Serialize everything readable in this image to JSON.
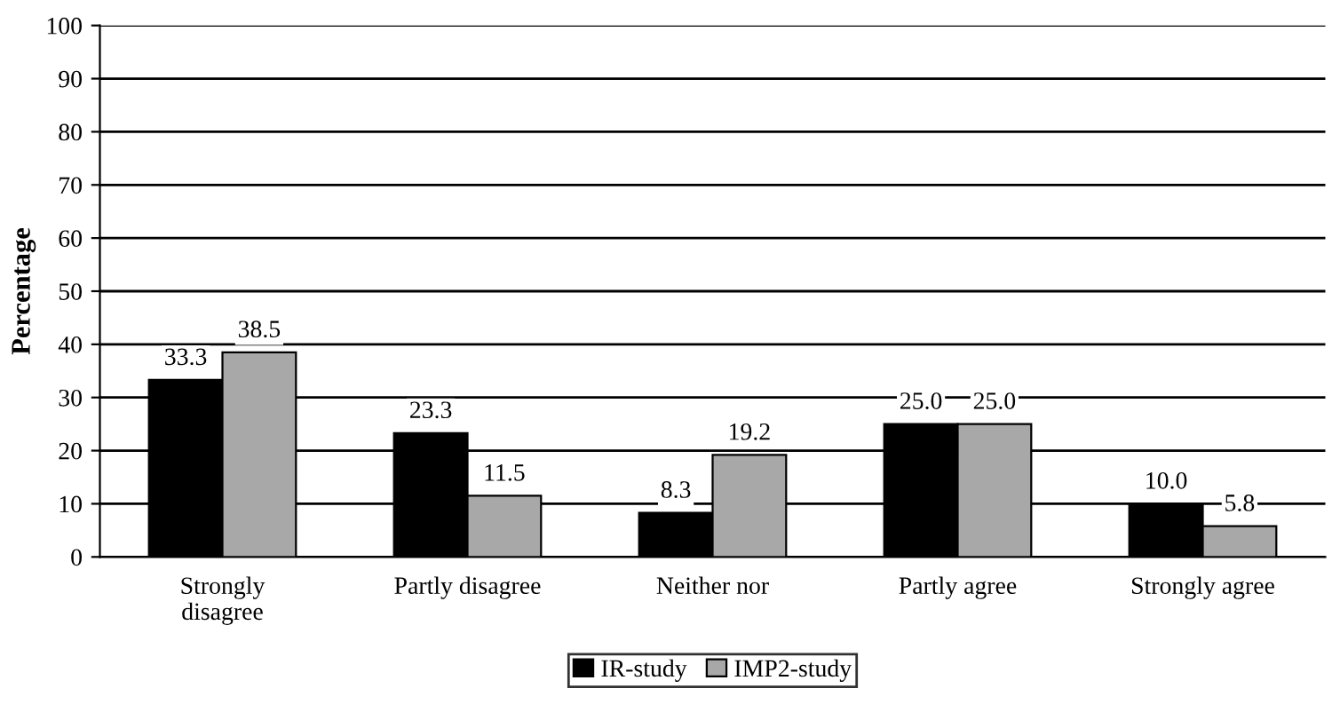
{
  "chart_data": {
    "type": "bar",
    "ylabel": "Percentage",
    "categories": [
      "Strongly\ndisagree",
      "Partly disagree",
      "Neither nor",
      "Partly agree",
      "Strongly agree"
    ],
    "series": [
      {
        "name": "IR-study",
        "color": "#000000",
        "values": [
          33.3,
          23.3,
          8.3,
          25.0,
          10.0
        ],
        "value_labels": [
          "33.3",
          "23.3",
          "8.3",
          "25.0",
          "10.0"
        ]
      },
      {
        "name": "IMP2-study",
        "color": "#a8a8a8",
        "values": [
          38.5,
          11.5,
          19.2,
          25.0,
          5.8
        ],
        "value_labels": [
          "38.5",
          "11.5",
          "19.2",
          "25.0",
          "5.8"
        ]
      }
    ],
    "ylim": [
      0,
      100
    ],
    "yticks": [
      0,
      10,
      20,
      30,
      40,
      50,
      60,
      70,
      80,
      90,
      100
    ],
    "grid": "y",
    "legend": "bottom"
  }
}
